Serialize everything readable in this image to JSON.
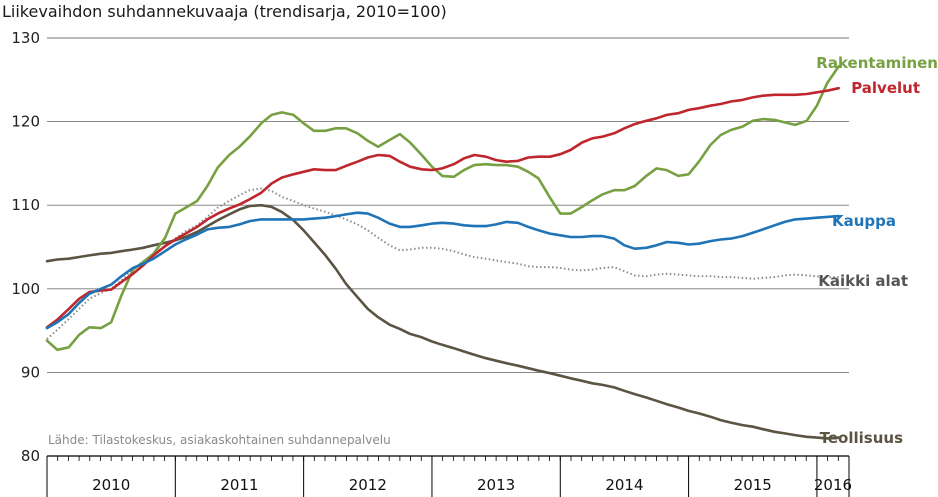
{
  "chart_data": {
    "type": "line",
    "title": "Liikevaihdon suhdannekuvaaja (trendisarja, 2010=100)",
    "source": "Lähde: Tilastokeskus, asiakaskohtainen suhdannepalvelu",
    "xlabel": "",
    "ylabel": "",
    "ylim": [
      80,
      130
    ],
    "yticks": [
      80,
      90,
      100,
      110,
      120,
      130
    ],
    "xlim": [
      2010.0,
      2016.25
    ],
    "years": [
      "2010",
      "2011",
      "2012",
      "2013",
      "2014",
      "2015",
      "2016"
    ],
    "grid": true,
    "series": [
      {
        "name": "Rakentaminen",
        "color": "#77a042",
        "x": [
          2010.0,
          2010.08,
          2010.17,
          2010.25,
          2010.33,
          2010.42,
          2010.5,
          2010.58,
          2010.67,
          2010.75,
          2010.83,
          2010.92,
          2011.0,
          2011.08,
          2011.17,
          2011.25,
          2011.33,
          2011.42,
          2011.5,
          2011.58,
          2011.67,
          2011.75,
          2011.83,
          2011.92,
          2012.0,
          2012.08,
          2012.17,
          2012.25,
          2012.33,
          2012.42,
          2012.5,
          2012.58,
          2012.67,
          2012.75,
          2012.83,
          2012.92,
          2013.0,
          2013.08,
          2013.17,
          2013.25,
          2013.33,
          2013.42,
          2013.5,
          2013.58,
          2013.67,
          2013.75,
          2013.83,
          2013.92,
          2014.0,
          2014.08,
          2014.17,
          2014.25,
          2014.33,
          2014.42,
          2014.5,
          2014.58,
          2014.67,
          2014.75,
          2014.83,
          2014.92,
          2015.0,
          2015.08,
          2015.17,
          2015.25,
          2015.33,
          2015.42,
          2015.5,
          2015.58,
          2015.67,
          2015.75,
          2015.83,
          2015.92,
          2016.0,
          2016.08,
          2016.17
        ],
        "values": [
          93.8,
          92.7,
          93.0,
          94.5,
          95.4,
          95.3,
          96.0,
          99.2,
          102.3,
          103.2,
          104.2,
          106.1,
          109.0,
          109.7,
          110.5,
          112.3,
          114.5,
          116.0,
          117.0,
          118.2,
          119.8,
          120.8,
          121.1,
          120.8,
          119.8,
          118.9,
          118.9,
          119.2,
          119.2,
          118.6,
          117.7,
          117.0,
          117.8,
          118.5,
          117.5,
          116.0,
          114.6,
          113.5,
          113.4,
          114.2,
          114.8,
          114.9,
          114.8,
          114.8,
          114.6,
          114.0,
          113.2,
          110.9,
          109.0,
          109.0,
          109.8,
          110.6,
          111.3,
          111.8,
          111.8,
          112.3,
          113.5,
          114.4,
          114.2,
          113.5,
          113.7,
          115.2,
          117.2,
          118.4,
          119.0,
          119.4,
          120.1,
          120.3,
          120.2,
          119.9,
          119.6,
          120.1,
          121.9,
          124.6,
          126.6
        ]
      },
      {
        "name": "Palvelut",
        "color": "#c0262d",
        "x": [
          2010.0,
          2010.08,
          2010.17,
          2010.25,
          2010.33,
          2010.42,
          2010.5,
          2010.58,
          2010.67,
          2010.75,
          2010.83,
          2010.92,
          2011.0,
          2011.08,
          2011.17,
          2011.25,
          2011.33,
          2011.42,
          2011.5,
          2011.58,
          2011.67,
          2011.75,
          2011.83,
          2011.92,
          2012.0,
          2012.08,
          2012.17,
          2012.25,
          2012.33,
          2012.42,
          2012.5,
          2012.58,
          2012.67,
          2012.75,
          2012.83,
          2012.92,
          2013.0,
          2013.08,
          2013.17,
          2013.25,
          2013.33,
          2013.42,
          2013.5,
          2013.58,
          2013.67,
          2013.75,
          2013.83,
          2013.92,
          2014.0,
          2014.08,
          2014.17,
          2014.25,
          2014.33,
          2014.42,
          2014.5,
          2014.58,
          2014.67,
          2014.75,
          2014.83,
          2014.92,
          2015.0,
          2015.08,
          2015.17,
          2015.25,
          2015.33,
          2015.42,
          2015.5,
          2015.58,
          2015.67,
          2015.75,
          2015.83,
          2015.92,
          2016.0,
          2016.08,
          2016.17
        ],
        "values": [
          95.4,
          96.3,
          97.6,
          98.8,
          99.6,
          99.8,
          99.9,
          100.8,
          101.8,
          102.8,
          104.0,
          105.1,
          105.9,
          106.6,
          107.4,
          108.3,
          109.0,
          109.6,
          110.1,
          110.7,
          111.5,
          112.6,
          113.3,
          113.7,
          114.0,
          114.3,
          114.2,
          114.2,
          114.7,
          115.2,
          115.7,
          116.0,
          115.9,
          115.2,
          114.6,
          114.3,
          114.2,
          114.4,
          114.9,
          115.6,
          116.0,
          115.8,
          115.4,
          115.2,
          115.3,
          115.7,
          115.8,
          115.8,
          116.1,
          116.6,
          117.5,
          118.0,
          118.2,
          118.6,
          119.2,
          119.7,
          120.1,
          120.4,
          120.8,
          121.0,
          121.4,
          121.6,
          121.9,
          122.1,
          122.4,
          122.6,
          122.9,
          123.1,
          123.2,
          123.2,
          123.2,
          123.3,
          123.5,
          123.7,
          124.0
        ]
      },
      {
        "name": "Kauppa",
        "color": "#1f74b8",
        "x": [
          2010.0,
          2010.08,
          2010.17,
          2010.25,
          2010.33,
          2010.42,
          2010.5,
          2010.58,
          2010.67,
          2010.75,
          2010.83,
          2010.92,
          2011.0,
          2011.08,
          2011.17,
          2011.25,
          2011.33,
          2011.42,
          2011.5,
          2011.58,
          2011.67,
          2011.75,
          2011.83,
          2011.92,
          2012.0,
          2012.08,
          2012.17,
          2012.25,
          2012.33,
          2012.42,
          2012.5,
          2012.58,
          2012.67,
          2012.75,
          2012.83,
          2012.92,
          2013.0,
          2013.08,
          2013.17,
          2013.25,
          2013.33,
          2013.42,
          2013.5,
          2013.58,
          2013.67,
          2013.75,
          2013.83,
          2013.92,
          2014.0,
          2014.08,
          2014.17,
          2014.25,
          2014.33,
          2014.42,
          2014.5,
          2014.58,
          2014.67,
          2014.75,
          2014.83,
          2014.92,
          2015.0,
          2015.08,
          2015.17,
          2015.25,
          2015.33,
          2015.42,
          2015.5,
          2015.58,
          2015.67,
          2015.75,
          2015.83,
          2015.92,
          2016.0,
          2016.08,
          2016.17
        ],
        "values": [
          95.3,
          96.0,
          97.0,
          98.3,
          99.4,
          100.0,
          100.5,
          101.5,
          102.5,
          103.0,
          103.6,
          104.5,
          105.3,
          105.9,
          106.5,
          107.1,
          107.3,
          107.4,
          107.7,
          108.1,
          108.3,
          108.3,
          108.3,
          108.3,
          108.3,
          108.4,
          108.5,
          108.7,
          108.9,
          109.1,
          109.0,
          108.5,
          107.8,
          107.4,
          107.4,
          107.6,
          107.8,
          107.9,
          107.8,
          107.6,
          107.5,
          107.5,
          107.7,
          108.0,
          107.9,
          107.4,
          107.0,
          106.6,
          106.4,
          106.2,
          106.2,
          106.3,
          106.3,
          106.0,
          105.2,
          104.8,
          104.9,
          105.2,
          105.6,
          105.5,
          105.3,
          105.4,
          105.7,
          105.9,
          106.0,
          106.3,
          106.7,
          107.1,
          107.6,
          108.0,
          108.3,
          108.4,
          108.5,
          108.6,
          108.7
        ]
      },
      {
        "name": "Kaikki alat",
        "color": "#8c8c8c",
        "dashed": true,
        "x": [
          2010.0,
          2010.08,
          2010.17,
          2010.25,
          2010.33,
          2010.42,
          2010.5,
          2010.58,
          2010.67,
          2010.75,
          2010.83,
          2010.92,
          2011.0,
          2011.08,
          2011.17,
          2011.25,
          2011.33,
          2011.42,
          2011.5,
          2011.58,
          2011.67,
          2011.75,
          2011.83,
          2011.92,
          2012.0,
          2012.08,
          2012.17,
          2012.25,
          2012.33,
          2012.42,
          2012.5,
          2012.58,
          2012.67,
          2012.75,
          2012.83,
          2012.92,
          2013.0,
          2013.08,
          2013.17,
          2013.25,
          2013.33,
          2013.42,
          2013.5,
          2013.58,
          2013.67,
          2013.75,
          2013.83,
          2013.92,
          2014.0,
          2014.08,
          2014.17,
          2014.25,
          2014.33,
          2014.42,
          2014.5,
          2014.58,
          2014.67,
          2014.75,
          2014.83,
          2014.92,
          2015.0,
          2015.08,
          2015.17,
          2015.25,
          2015.33,
          2015.42,
          2015.5,
          2015.58,
          2015.67,
          2015.75,
          2015.83,
          2015.92,
          2016.0,
          2016.08,
          2016.17
        ],
        "values": [
          94.0,
          95.1,
          96.4,
          97.6,
          98.8,
          99.5,
          100.0,
          101.0,
          102.3,
          103.3,
          104.2,
          105.1,
          106.0,
          106.9,
          107.6,
          108.6,
          109.7,
          110.5,
          111.2,
          111.8,
          112.0,
          111.7,
          111.0,
          110.5,
          110.0,
          109.6,
          109.2,
          108.8,
          108.3,
          107.7,
          107.0,
          106.1,
          105.2,
          104.6,
          104.7,
          104.9,
          104.9,
          104.8,
          104.5,
          104.1,
          103.8,
          103.6,
          103.4,
          103.2,
          103.0,
          102.7,
          102.6,
          102.6,
          102.5,
          102.3,
          102.2,
          102.3,
          102.5,
          102.6,
          102.1,
          101.6,
          101.5,
          101.7,
          101.8,
          101.7,
          101.6,
          101.5,
          101.5,
          101.4,
          101.4,
          101.3,
          101.2,
          101.3,
          101.4,
          101.6,
          101.7,
          101.6,
          101.5,
          101.4,
          101.4
        ]
      },
      {
        "name": "Teollisuus",
        "color": "#5b5443",
        "x": [
          2010.0,
          2010.08,
          2010.17,
          2010.25,
          2010.33,
          2010.42,
          2010.5,
          2010.58,
          2010.67,
          2010.75,
          2010.83,
          2010.92,
          2011.0,
          2011.08,
          2011.17,
          2011.25,
          2011.33,
          2011.42,
          2011.5,
          2011.58,
          2011.67,
          2011.75,
          2011.83,
          2011.92,
          2012.0,
          2012.08,
          2012.17,
          2012.25,
          2012.33,
          2012.42,
          2012.5,
          2012.58,
          2012.67,
          2012.75,
          2012.83,
          2012.92,
          2013.0,
          2013.08,
          2013.17,
          2013.25,
          2013.33,
          2013.42,
          2013.5,
          2013.58,
          2013.67,
          2013.75,
          2013.83,
          2013.92,
          2014.0,
          2014.08,
          2014.17,
          2014.25,
          2014.33,
          2014.42,
          2014.5,
          2014.58,
          2014.67,
          2014.75,
          2014.83,
          2014.92,
          2015.0,
          2015.08,
          2015.17,
          2015.25,
          2015.33,
          2015.42,
          2015.5,
          2015.58,
          2015.67,
          2015.75,
          2015.83,
          2015.92,
          2016.0,
          2016.08,
          2016.17
        ],
        "values": [
          103.3,
          103.5,
          103.6,
          103.8,
          104.0,
          104.2,
          104.3,
          104.5,
          104.7,
          104.9,
          105.2,
          105.5,
          105.8,
          106.2,
          106.8,
          107.5,
          108.2,
          108.9,
          109.5,
          109.9,
          110.0,
          109.8,
          109.2,
          108.2,
          107.0,
          105.6,
          104.0,
          102.4,
          100.6,
          99.0,
          97.6,
          96.6,
          95.7,
          95.2,
          94.6,
          94.2,
          93.7,
          93.3,
          92.9,
          92.5,
          92.1,
          91.7,
          91.4,
          91.1,
          90.8,
          90.5,
          90.2,
          89.9,
          89.6,
          89.3,
          89.0,
          88.7,
          88.5,
          88.2,
          87.8,
          87.4,
          87.0,
          86.6,
          86.2,
          85.8,
          85.4,
          85.1,
          84.7,
          84.3,
          84.0,
          83.7,
          83.5,
          83.2,
          82.9,
          82.7,
          82.5,
          82.3,
          82.2,
          82.1,
          82.2
        ]
      }
    ]
  }
}
